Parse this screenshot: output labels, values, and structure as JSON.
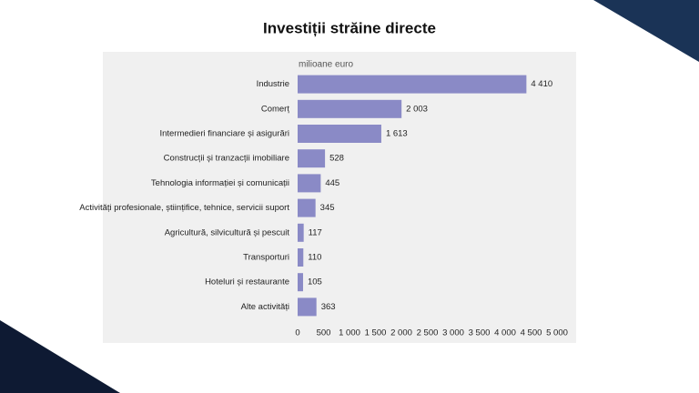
{
  "chart_data": {
    "type": "bar",
    "orientation": "horizontal",
    "title": "Investiții străine directe",
    "unit_label": "milioane euro",
    "categories": [
      "Industrie",
      "Comerț",
      "Intermedieri financiare și asigurări",
      "Construcții și tranzacții imobiliare",
      "Tehnologia informației și comunicații",
      "Activități profesionale, științifice, tehnice, servicii suport",
      "Agricultură, silvicultură și pescuit",
      "Transporturi",
      "Hoteluri și restaurante",
      "Alte activități"
    ],
    "values": [
      4410,
      2003,
      1613,
      528,
      445,
      345,
      117,
      110,
      105,
      363
    ],
    "value_labels": [
      "4 410",
      "2 003",
      "1 613",
      "528",
      "445",
      "345",
      "117",
      "110",
      "105",
      "363"
    ],
    "color": "#8a8ac6",
    "xlim": [
      0,
      5000
    ],
    "xticks": [
      0,
      500,
      {
        "value": 1000,
        "label": "1 000"
      },
      {
        "value": 1500,
        "label": "1 500"
      },
      {
        "value": 2000,
        "label": "2 000"
      },
      {
        "value": 2500,
        "label": "2 500"
      },
      {
        "value": 3000,
        "label": "3 000"
      },
      {
        "value": 3500,
        "label": "3 500"
      },
      {
        "value": 4000,
        "label": "4 000"
      },
      {
        "value": 4500,
        "label": "4 500"
      },
      {
        "value": 5000,
        "label": "5 000"
      }
    ],
    "grid": false
  }
}
